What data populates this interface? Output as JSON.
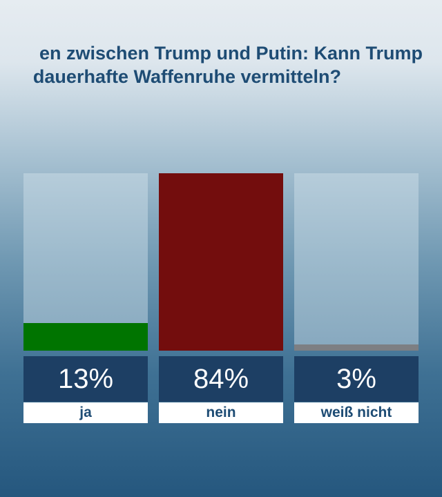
{
  "chart_data": {
    "type": "bar",
    "title_lines": [
      "en zwischen Trump und Putin: Kann Trump",
      "dauerhafte Waffenruhe vermitteln?"
    ],
    "categories": [
      "ja",
      "nein",
      "weiß nicht"
    ],
    "values": [
      13,
      84,
      3
    ],
    "value_labels": [
      "13%",
      "84%",
      "3%"
    ],
    "colors": [
      "#007400",
      "#730d0d",
      "#7d7f83"
    ],
    "ylim": [
      0,
      84
    ],
    "grid": false,
    "legend": "none"
  }
}
